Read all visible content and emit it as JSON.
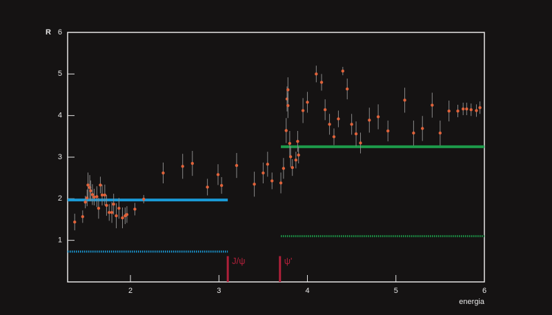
{
  "chart_data": {
    "type": "scatter",
    "x_label": "energia",
    "y_label": "R",
    "xlim": [
      1.29,
      6
    ],
    "ylim": [
      0,
      6
    ],
    "xticks": [
      2,
      3,
      4,
      5,
      6
    ],
    "yticks": [
      1,
      2,
      3,
      4,
      5,
      6
    ],
    "color": "#e0623a",
    "error_color": "#8a8a8a",
    "x": [
      1.37,
      1.46,
      1.49,
      1.51,
      1.52,
      1.54,
      1.55,
      1.57,
      1.59,
      1.62,
      1.64,
      1.66,
      1.68,
      1.71,
      1.73,
      1.76,
      1.79,
      1.81,
      1.84,
      1.87,
      1.91,
      1.94,
      1.96,
      2.05,
      2.15,
      2.37,
      2.59,
      2.7,
      2.87,
      2.99,
      3.03,
      3.2,
      3.4,
      3.5,
      3.55,
      3.6,
      3.7,
      3.73,
      3.76,
      3.77,
      3.78,
      3.78,
      3.8,
      3.81,
      3.83,
      3.87,
      3.89,
      3.9,
      3.95,
      4.0,
      4.1,
      4.16,
      4.2,
      4.25,
      4.3,
      4.35,
      4.4,
      4.45,
      4.5,
      4.55,
      4.6,
      4.7,
      4.8,
      4.91,
      5.1,
      5.2,
      5.3,
      5.41,
      5.5,
      5.6,
      5.7,
      5.76,
      5.8,
      5.85,
      5.91,
      5.95
    ],
    "y": [
      1.44,
      1.57,
      1.92,
      2.02,
      2.33,
      2.27,
      2.19,
      2.1,
      2.04,
      2.05,
      1.77,
      2.33,
      2.09,
      2.09,
      1.84,
      1.67,
      1.67,
      1.87,
      1.59,
      1.77,
      1.54,
      1.59,
      1.62,
      1.75,
      1.99,
      2.62,
      2.78,
      2.85,
      2.28,
      2.58,
      2.32,
      2.8,
      2.35,
      2.62,
      2.83,
      2.43,
      2.38,
      2.73,
      3.64,
      4.4,
      4.62,
      4.24,
      3.33,
      3.01,
      2.75,
      2.93,
      3.38,
      3.05,
      4.12,
      4.32,
      5.0,
      4.8,
      4.14,
      3.79,
      3.49,
      3.92,
      5.07,
      4.64,
      3.79,
      3.56,
      3.34,
      3.89,
      3.97,
      3.63,
      4.37,
      3.58,
      3.69,
      4.25,
      3.58,
      4.11,
      4.11,
      4.16,
      4.16,
      4.14,
      4.12,
      4.19
    ],
    "errors": [
      0.2,
      0.15,
      0.15,
      0.2,
      0.3,
      0.3,
      0.25,
      0.25,
      0.2,
      0.25,
      0.25,
      0.2,
      0.25,
      0.25,
      0.25,
      0.2,
      0.25,
      0.25,
      0.3,
      0.25,
      0.25,
      0.2,
      0.2,
      0.15,
      0.1,
      0.25,
      0.3,
      0.3,
      0.2,
      0.25,
      0.2,
      0.3,
      0.3,
      0.25,
      0.3,
      0.2,
      0.25,
      0.25,
      0.3,
      0.3,
      0.3,
      0.3,
      0.3,
      0.25,
      0.2,
      0.2,
      0.25,
      0.2,
      0.3,
      0.25,
      0.2,
      0.2,
      0.25,
      0.25,
      0.2,
      0.2,
      0.1,
      0.25,
      0.25,
      0.3,
      0.25,
      0.3,
      0.3,
      0.25,
      0.3,
      0.3,
      0.3,
      0.3,
      0.3,
      0.25,
      0.15,
      0.15,
      0.15,
      0.15,
      0.15,
      0.15
    ],
    "reference_lines": [
      {
        "y": 1.97,
        "x": [
          1.29,
          3.1
        ],
        "color": "#1a9ad6",
        "style": "solid"
      },
      {
        "y": 0.73,
        "x": [
          1.29,
          3.1
        ],
        "color": "#1a9ad6",
        "style": "dotted"
      },
      {
        "y": 3.25,
        "x": [
          3.7,
          6
        ],
        "color": "#1d9a4a",
        "style": "solid"
      },
      {
        "y": 1.1,
        "x": [
          3.7,
          6
        ],
        "color": "#1d9a4a",
        "style": "dotted"
      }
    ],
    "resonances": [
      {
        "label": "J/ψ",
        "x": 3.1,
        "height": 0.62,
        "color": "#b0203a"
      },
      {
        "label": "ψ'",
        "x": 3.69,
        "height": 0.62,
        "color": "#b0203a"
      }
    ]
  }
}
